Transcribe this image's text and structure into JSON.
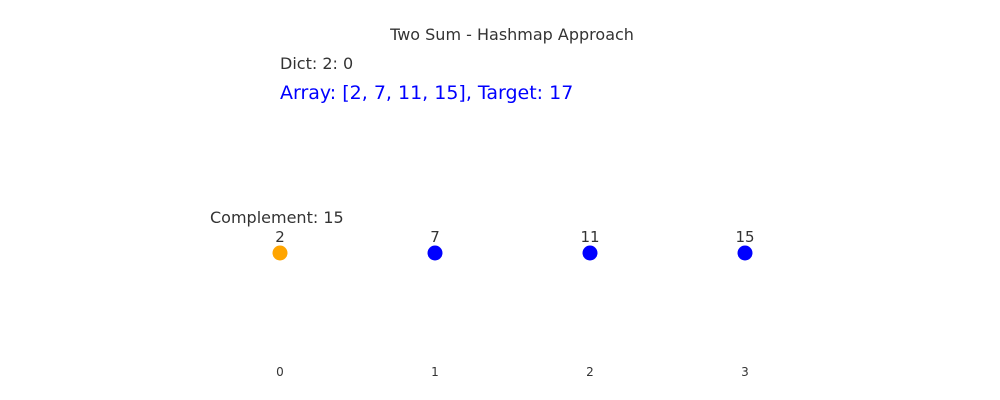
{
  "title": "Two Sum - Hashmap Approach",
  "dict_text": "Dict: 2: 0",
  "array_text": "Array: [2, 7, 11, 15], Target: 17",
  "complement_text": "Complement: 15",
  "colors": {
    "current": "#ffa500",
    "default": "#0000ff"
  },
  "chart_data": {
    "type": "scatter",
    "values": [
      2,
      7,
      11,
      15
    ],
    "indices": [
      "0",
      "1",
      "2",
      "3"
    ],
    "current_index": 0,
    "target": 17
  }
}
